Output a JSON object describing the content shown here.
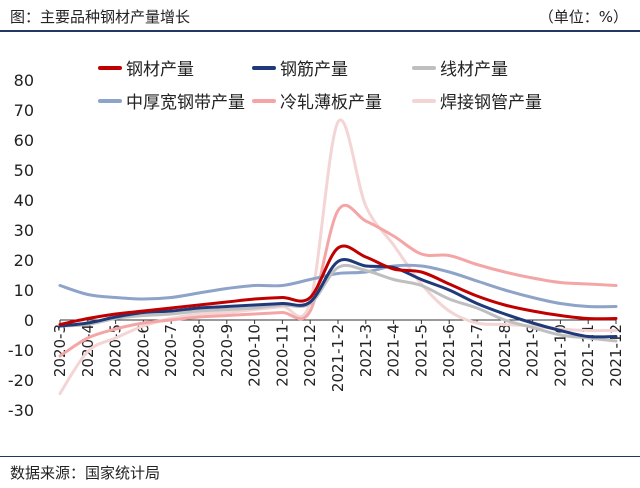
{
  "header": {
    "title": "图：主要品种钢材产量增长",
    "unit": "（单位：%）"
  },
  "footer": {
    "source": "数据来源：国家统计局"
  },
  "chart_data": {
    "type": "line",
    "title": "图：主要品种钢材产量增长",
    "ylabel": "（单位：%）",
    "ylim": [
      -30,
      80
    ],
    "yticks": [
      -30,
      -20,
      -10,
      0,
      10,
      20,
      30,
      40,
      50,
      60,
      70,
      80
    ],
    "grid": false,
    "legend": "top-center",
    "x_labels": [
      "2020-3",
      "2020-4",
      "2020-5",
      "2020-6",
      "2020-7",
      "2020-8",
      "2020-9",
      "2020-10",
      "2020-11",
      "2020-12",
      "2021-1-2",
      "2021-3",
      "2021-4",
      "2021-5",
      "2021-6",
      "2021-7",
      "2021-8",
      "2021-9",
      "2021-10",
      "2021-11",
      "2021-12"
    ],
    "series": [
      {
        "name": "钢材产量",
        "color": "#c00000",
        "width": 3,
        "values": [
          -1.5,
          0.5,
          2.0,
          3.0,
          4.0,
          5.0,
          6.0,
          7.0,
          7.5,
          7.5,
          24.0,
          21.0,
          17.0,
          16.0,
          12.0,
          8.0,
          5.0,
          3.0,
          1.5,
          0.5,
          0.5
        ]
      },
      {
        "name": "钢筋产量",
        "color": "#1f3a7a",
        "width": 3,
        "values": [
          -2.0,
          -1.0,
          1.0,
          2.5,
          3.0,
          4.0,
          4.5,
          5.0,
          5.5,
          6.0,
          19.5,
          18.0,
          17.5,
          13.5,
          10.0,
          5.5,
          2.0,
          -1.0,
          -3.5,
          -5.5,
          -5.5
        ]
      },
      {
        "name": "线材产量",
        "color": "#bfbfbf",
        "width": 3,
        "values": [
          -2.0,
          -1.5,
          0.5,
          1.5,
          2.0,
          3.0,
          3.5,
          4.0,
          5.0,
          5.5,
          17.5,
          16.5,
          13.5,
          11.5,
          7.0,
          4.0,
          0.0,
          -2.5,
          -5.0,
          -6.0,
          -7.0
        ]
      },
      {
        "name": "中厚宽钢带产量",
        "color": "#8ea3c8",
        "width": 3,
        "values": [
          11.5,
          8.5,
          7.5,
          7.0,
          7.5,
          9.0,
          10.5,
          11.5,
          11.5,
          13.5,
          15.5,
          16.0,
          18.0,
          18.0,
          16.0,
          13.0,
          10.0,
          7.5,
          5.5,
          4.5,
          4.5
        ]
      },
      {
        "name": "冷轧薄板产量",
        "color": "#f4a6a6",
        "width": 3,
        "values": [
          -12.0,
          -6.0,
          -3.0,
          -1.0,
          0.0,
          1.0,
          1.5,
          2.0,
          2.5,
          3.0,
          36.5,
          33.0,
          28.0,
          22.0,
          21.5,
          18.5,
          16.0,
          14.0,
          12.5,
          12.0,
          11.5
        ]
      },
      {
        "name": "焊接钢管产量",
        "color": "#f3d5d5",
        "width": 3,
        "values": [
          -24.5,
          -10.5,
          -6.0,
          -2.0,
          0.5,
          2.0,
          2.5,
          3.5,
          4.5,
          6.0,
          66.0,
          38.0,
          25.0,
          12.0,
          3.0,
          -1.0,
          -1.5,
          -2.0,
          -3.0,
          -3.5,
          -3.5
        ]
      }
    ]
  }
}
